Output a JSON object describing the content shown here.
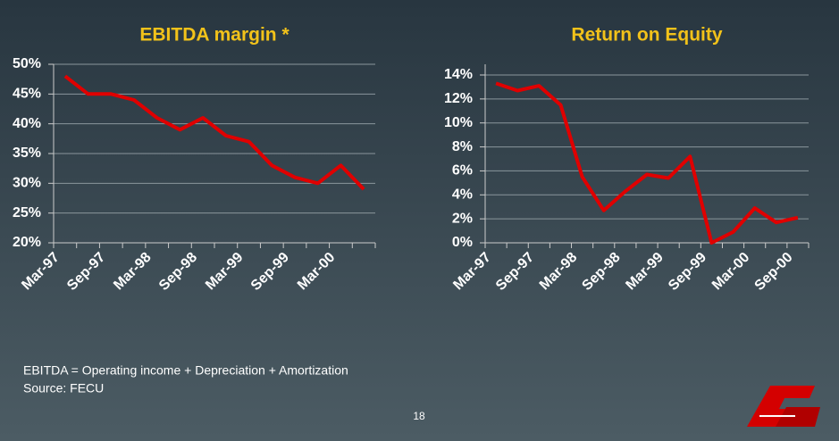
{
  "chart_data": [
    {
      "type": "line",
      "title": "EBITDA margin *",
      "categories": [
        "Mar-97",
        null,
        "Sep-97",
        null,
        "Mar-98",
        null,
        "Sep-98",
        null,
        "Mar-99",
        null,
        "Sep-99",
        null,
        "Mar-00",
        null
      ],
      "series": [
        {
          "color": "#e00000",
          "values": [
            48,
            45,
            45,
            44,
            41,
            39,
            41,
            38,
            37,
            33,
            31,
            30,
            33,
            29
          ]
        }
      ],
      "ylim": [
        20,
        50
      ],
      "yticks": [
        {
          "value": 20,
          "label": "20%"
        },
        {
          "value": 25,
          "label": "25%"
        },
        {
          "value": 30,
          "label": "30%"
        },
        {
          "value": 35,
          "label": "35%"
        },
        {
          "value": 40,
          "label": "40%"
        },
        {
          "value": 45,
          "label": "45%"
        },
        {
          "value": 50,
          "label": "50%"
        }
      ],
      "grid": true
    },
    {
      "type": "line",
      "title": "Return on Equity",
      "categories": [
        "Mar-97",
        null,
        "Sep-97",
        null,
        "Mar-98",
        null,
        "Sep-98",
        null,
        "Mar-99",
        null,
        "Sep-99",
        null,
        "Mar-00",
        null,
        "Sep-00"
      ],
      "series": [
        {
          "color": "#e00000",
          "values": [
            13.3,
            12.7,
            13.1,
            11.5,
            5.5,
            2.7,
            4.3,
            5.7,
            5.4,
            7.2,
            0,
            0.9,
            2.9,
            1.7,
            2.1
          ]
        }
      ],
      "ylim": [
        0,
        14
      ],
      "yticks": [
        {
          "value": 0,
          "label": "0%"
        },
        {
          "value": 2,
          "label": "2%"
        },
        {
          "value": 4,
          "label": "4%"
        },
        {
          "value": 6,
          "label": "6%"
        },
        {
          "value": 8,
          "label": "8%"
        },
        {
          "value": 10,
          "label": "10%"
        },
        {
          "value": 12,
          "label": "12%"
        },
        {
          "value": 14,
          "label": "14%"
        }
      ],
      "grid": true
    }
  ],
  "footnotes": [
    "EBITDA = Operating income + Depreciation + Amortization",
    "Source: FECU"
  ],
  "page_number": "18"
}
